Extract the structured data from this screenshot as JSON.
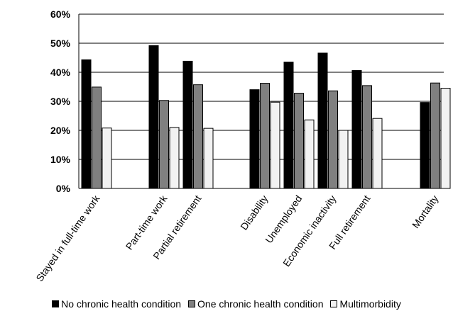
{
  "chart_data": {
    "type": "bar",
    "title": "",
    "xlabel": "",
    "ylabel": "",
    "ylim": [
      0,
      60
    ],
    "y_ticks": [
      "0%",
      "10%",
      "20%",
      "30%",
      "40%",
      "50%",
      "60%"
    ],
    "grid": "horizontal",
    "legend_position": "bottom",
    "categories": [
      "Stayed in full-time work",
      "Part-time work",
      "Partial retirement",
      "Disability",
      "Unemployed",
      "Economic inactivity",
      "Full retirement",
      "Mortality"
    ],
    "series": [
      {
        "name": "No chronic health condition",
        "color": "#000000",
        "values": [
          44.3,
          49.2,
          43.8,
          34.0,
          43.5,
          46.6,
          40.6,
          29.6
        ]
      },
      {
        "name": "One chronic health condition",
        "color": "#808080",
        "values": [
          34.9,
          30.3,
          35.7,
          36.2,
          32.8,
          33.6,
          35.4,
          36.3
        ]
      },
      {
        "name": "Multimorbidity",
        "color": "#f2f2f2",
        "values": [
          20.8,
          21.0,
          20.7,
          29.7,
          23.6,
          20.0,
          24.1,
          34.5
        ]
      }
    ]
  }
}
